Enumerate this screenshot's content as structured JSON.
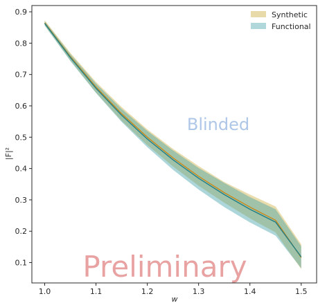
{
  "chart_data": {
    "type": "area",
    "x": [
      1.0,
      1.05,
      1.1,
      1.15,
      1.2,
      1.25,
      1.3,
      1.35,
      1.4,
      1.45,
      1.5
    ],
    "series": [
      {
        "name": "Synthetic",
        "color": "#c9a227",
        "line_color": "#c98a1b",
        "central": [
          0.865,
          0.757,
          0.66,
          0.575,
          0.5,
          0.434,
          0.375,
          0.323,
          0.277,
          0.235,
          0.116
        ],
        "lower": [
          0.857,
          0.745,
          0.642,
          0.552,
          0.475,
          0.407,
          0.345,
          0.291,
          0.241,
          0.196,
          0.079
        ],
        "upper": [
          0.873,
          0.769,
          0.676,
          0.596,
          0.525,
          0.463,
          0.408,
          0.357,
          0.317,
          0.279,
          0.158
        ]
      },
      {
        "name": "Functional",
        "color": "#3a9ea5",
        "line_color": "#1f7f86",
        "central": [
          0.863,
          0.754,
          0.656,
          0.57,
          0.494,
          0.428,
          0.369,
          0.317,
          0.27,
          0.229,
          0.118
        ],
        "lower": [
          0.856,
          0.743,
          0.641,
          0.549,
          0.468,
          0.396,
          0.333,
          0.277,
          0.228,
          0.186,
          0.082
        ],
        "upper": [
          0.87,
          0.765,
          0.671,
          0.59,
          0.52,
          0.458,
          0.402,
          0.354,
          0.309,
          0.27,
          0.152
        ]
      }
    ],
    "xlabel": "w",
    "ylabel": "|F|²",
    "xlim": [
      0.975,
      1.53
    ],
    "ylim": [
      0.035,
      0.92
    ],
    "xticks": [
      1.0,
      1.1,
      1.2,
      1.3,
      1.4,
      1.5
    ],
    "xtick_labels": [
      "1.0",
      "1.1",
      "1.2",
      "1.3",
      "1.4",
      "1.5"
    ],
    "yticks": [
      0.1,
      0.2,
      0.3,
      0.4,
      0.5,
      0.6,
      0.7,
      0.8,
      0.9
    ],
    "ytick_labels": [
      "0.1",
      "0.2",
      "0.3",
      "0.4",
      "0.5",
      "0.6",
      "0.7",
      "0.8",
      "0.9"
    ],
    "grid": false,
    "legend_position": "top-right",
    "annotations": [
      {
        "text": "Blinded",
        "color": "#aec7e8"
      },
      {
        "text": "Preliminary",
        "color": "#e07b7b"
      }
    ]
  }
}
